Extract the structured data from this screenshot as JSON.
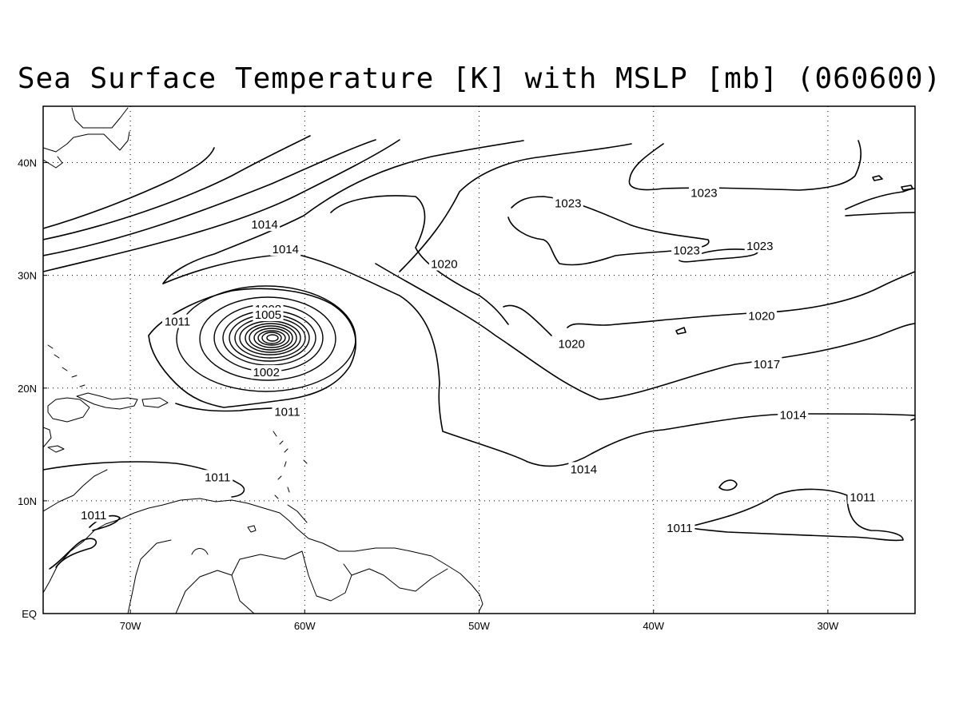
{
  "title": "Sea Surface Temperature [K] with MSLP [mb] (060600)",
  "map": {
    "extent": {
      "lon": [
        -75,
        -25
      ],
      "lat": [
        0,
        45
      ]
    },
    "grid": {
      "dotted": true,
      "lon_step": 10,
      "lat_step": 10
    },
    "x_ticks": [
      {
        "lon": -70,
        "label": "70W"
      },
      {
        "lon": -60,
        "label": "60W"
      },
      {
        "lon": -50,
        "label": "50W"
      },
      {
        "lon": -40,
        "label": "40W"
      },
      {
        "lon": -30,
        "label": "30W"
      }
    ],
    "y_ticks": [
      {
        "lat": 0,
        "label": "EQ"
      },
      {
        "lat": 10,
        "label": "10N"
      },
      {
        "lat": 20,
        "label": "20N"
      },
      {
        "lat": 30,
        "label": "30N"
      },
      {
        "lat": 40,
        "label": "40N"
      }
    ],
    "contour_labels": [
      {
        "text": "1014",
        "lon": -62.3,
        "lat": 34.5
      },
      {
        "text": "1014",
        "lon": -61.1,
        "lat": 32.3
      },
      {
        "text": "1011",
        "lon": -67.3,
        "lat": 25.9
      },
      {
        "text": "1008",
        "lon": -62.1,
        "lat": 27.0
      },
      {
        "text": "1005",
        "lon": -62.1,
        "lat": 26.5
      },
      {
        "text": "1002",
        "lon": -62.2,
        "lat": 21.4
      },
      {
        "text": "1011",
        "lon": -61.0,
        "lat": 17.9
      },
      {
        "text": "1011",
        "lon": -65.0,
        "lat": 12.1
      },
      {
        "text": "1011",
        "lon": -72.1,
        "lat": 8.7
      },
      {
        "text": "1020",
        "lon": -52.0,
        "lat": 31.0
      },
      {
        "text": "1020",
        "lon": -44.7,
        "lat": 23.9
      },
      {
        "text": "1023",
        "lon": -44.9,
        "lat": 36.4
      },
      {
        "text": "1023",
        "lon": -38.1,
        "lat": 32.2
      },
      {
        "text": "1023",
        "lon": -37.1,
        "lat": 37.3
      },
      {
        "text": "1023",
        "lon": -33.9,
        "lat": 32.6
      },
      {
        "text": "1020",
        "lon": -33.8,
        "lat": 26.4
      },
      {
        "text": "1017",
        "lon": -33.5,
        "lat": 22.1
      },
      {
        "text": "1014",
        "lon": -32.0,
        "lat": 17.6
      },
      {
        "text": "1014",
        "lon": -44.0,
        "lat": 12.8
      },
      {
        "text": "1011",
        "lon": -28.0,
        "lat": 10.3
      },
      {
        "text": "1011",
        "lon": -38.5,
        "lat": 7.6
      }
    ]
  }
}
